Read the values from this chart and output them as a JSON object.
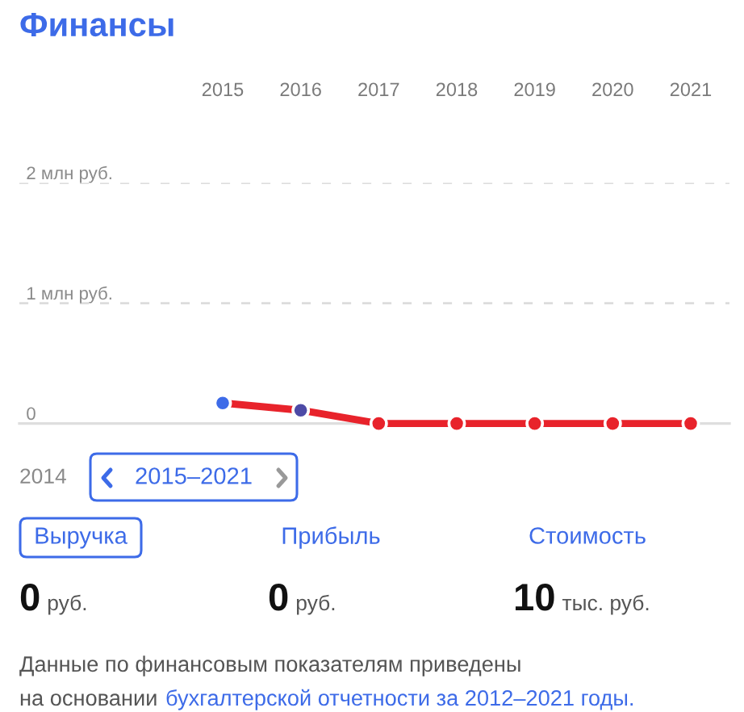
{
  "chart_data": {
    "type": "line",
    "title": "Финансы",
    "categories": [
      "2015",
      "2016",
      "2017",
      "2018",
      "2019",
      "2020",
      "2021"
    ],
    "series": [
      {
        "color": "#e8232b",
        "colors": [
          "#3d6be8",
          "#4d4aa6",
          "#e8232b",
          "#e8232b",
          "#e8232b",
          "#e8232b",
          "#e8232b"
        ],
        "values": [
          0.17,
          0.11,
          0,
          0,
          0,
          0,
          0
        ]
      }
    ],
    "ylim": [
      0,
      2
    ],
    "yticks": [
      0,
      {
        "value": 1,
        "label": "1 млн руб."
      },
      {
        "value": 2,
        "label": "2 млн руб."
      }
    ],
    "grid": "y",
    "marker": "circle",
    "line_style": "solid",
    "legend": false,
    "annotations": [
      "2014",
      "2015–2021",
      "Выручка",
      "Прибыль",
      "Стоимость",
      "0",
      "руб.",
      "0",
      "руб.",
      "10",
      "тыс. руб.",
      "Данные по финансовым показателям приведены",
      "на основании",
      "бухгалтерской отчетности за 2012–2021 годы."
    ]
  }
}
